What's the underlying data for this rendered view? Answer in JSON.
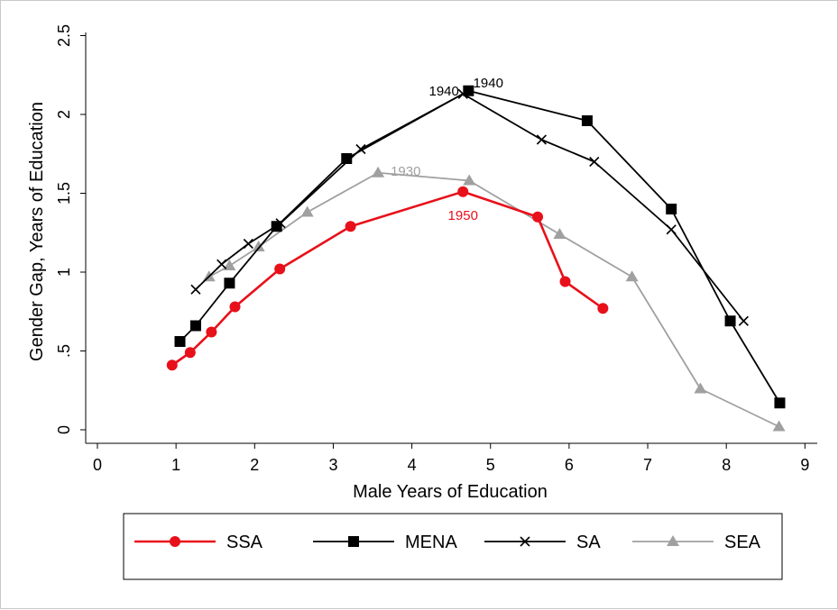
{
  "chart_data": {
    "type": "line",
    "title": "",
    "xlabel": "Male Years of Education",
    "ylabel": "Gender Gap, Years of Education",
    "xlim": [
      0,
      9
    ],
    "ylim": [
      0,
      2.5
    ],
    "xticks": [
      0,
      1,
      2,
      3,
      4,
      5,
      6,
      7,
      8,
      9
    ],
    "yticks": [
      0,
      0.5,
      1,
      1.5,
      2,
      2.5
    ],
    "ytick_labels": [
      "0",
      ".5",
      "1",
      "1.5",
      "2",
      "2.5"
    ],
    "grid": false,
    "legend_position": "bottom",
    "series": [
      {
        "name": "SSA",
        "color": "#e8101a",
        "marker": "circle",
        "x": [
          0.95,
          1.18,
          1.45,
          1.75,
          2.32,
          3.22,
          4.65,
          5.6,
          5.95,
          6.43
        ],
        "y": [
          0.41,
          0.49,
          0.62,
          0.78,
          1.02,
          1.29,
          1.51,
          1.35,
          0.94,
          0.77
        ]
      },
      {
        "name": "MENA",
        "color": "#000000",
        "marker": "square",
        "x": [
          1.05,
          1.25,
          1.68,
          2.28,
          3.17,
          4.72,
          6.23,
          7.3,
          8.05,
          8.68
        ],
        "y": [
          0.56,
          0.66,
          0.93,
          1.29,
          1.72,
          2.15,
          1.96,
          1.4,
          0.69,
          0.17
        ]
      },
      {
        "name": "SA",
        "color": "#000000",
        "marker": "x",
        "x": [
          1.25,
          1.58,
          1.92,
          2.33,
          3.35,
          4.65,
          5.65,
          6.32,
          7.3,
          8.22
        ],
        "y": [
          0.89,
          1.05,
          1.18,
          1.31,
          1.78,
          2.13,
          1.84,
          1.7,
          1.27,
          0.69
        ]
      },
      {
        "name": "SEA",
        "color": "#a0a0a0",
        "marker": "triangle",
        "x": [
          1.42,
          1.68,
          2.05,
          2.67,
          3.57,
          4.73,
          5.88,
          6.8,
          7.67,
          8.67
        ],
        "y": [
          0.97,
          1.04,
          1.16,
          1.38,
          1.63,
          1.58,
          1.24,
          0.97,
          0.26,
          0.02
        ]
      }
    ],
    "annotations": [
      {
        "text": "1940",
        "x": 4.6,
        "y": 2.15,
        "color": "#000000",
        "anchor": "end"
      },
      {
        "text": "1940",
        "x": 4.78,
        "y": 2.2,
        "color": "#000000",
        "anchor": "start"
      },
      {
        "text": "1930",
        "x": 3.73,
        "y": 1.64,
        "color": "#a0a0a0",
        "anchor": "start"
      },
      {
        "text": "1950",
        "x": 4.65,
        "y": 1.36,
        "color": "#e8101a",
        "anchor": "middle"
      }
    ]
  }
}
